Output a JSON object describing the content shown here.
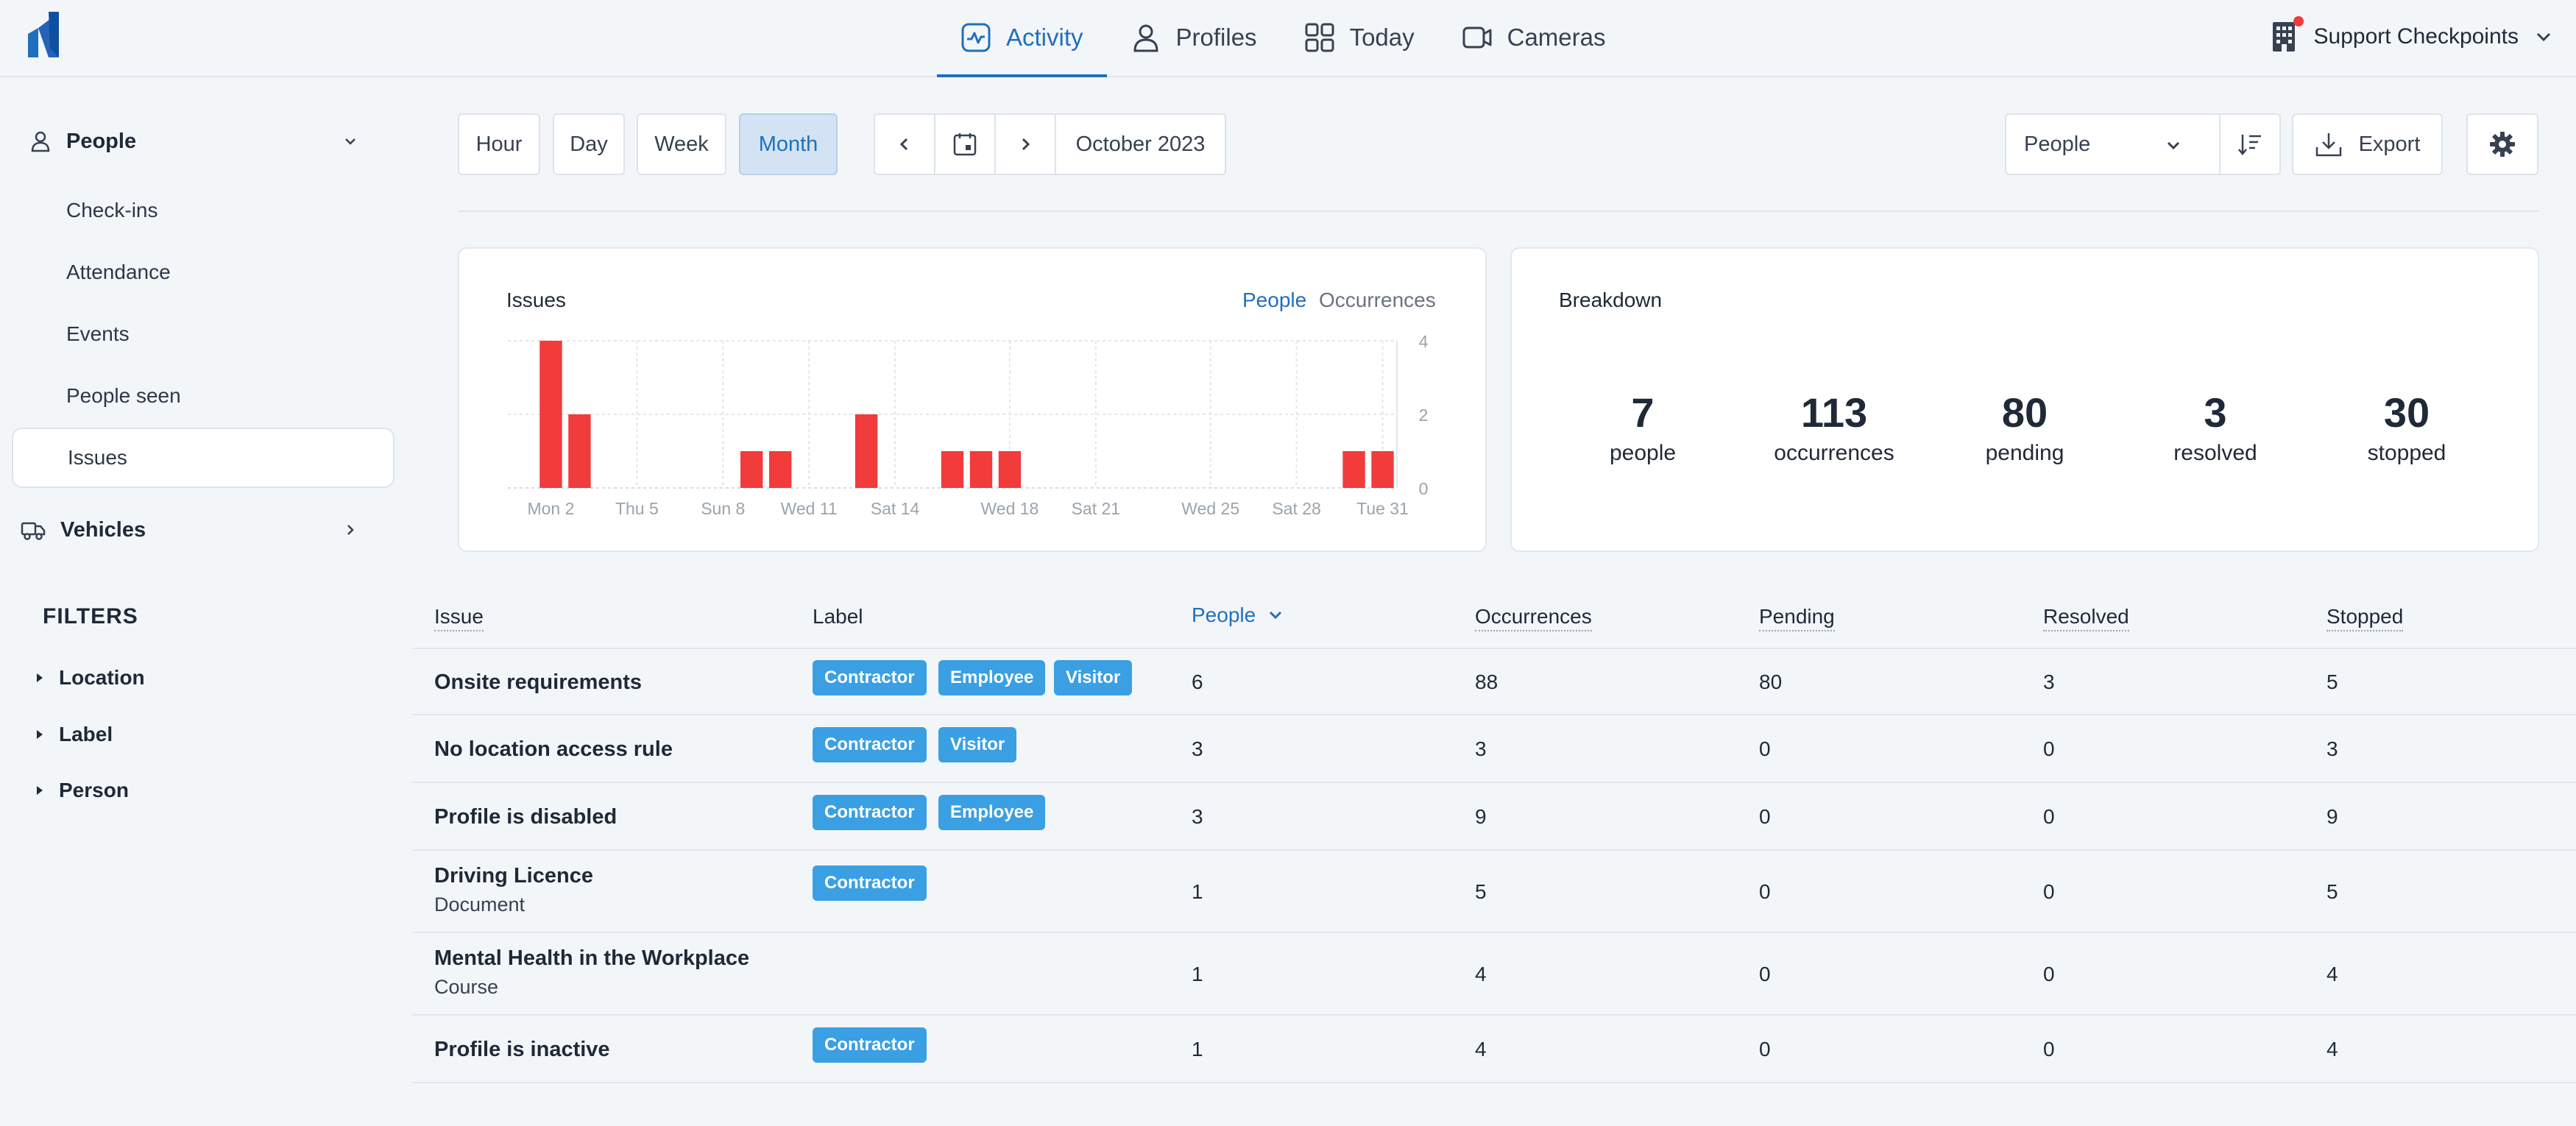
{
  "nav": {
    "tabs": [
      {
        "label": "Activity",
        "icon": "activity-icon",
        "active": true
      },
      {
        "label": "Profiles",
        "icon": "person-icon"
      },
      {
        "label": "Today",
        "icon": "grid-icon"
      },
      {
        "label": "Cameras",
        "icon": "camera-icon"
      }
    ],
    "org": "Support Checkpoints"
  },
  "sidebar": {
    "people_label": "People",
    "items": [
      {
        "label": "Check-ins"
      },
      {
        "label": "Attendance"
      },
      {
        "label": "Events"
      },
      {
        "label": "People seen"
      },
      {
        "label": "Issues",
        "active": true
      }
    ],
    "vehicles_label": "Vehicles",
    "filters_title": "FILTERS",
    "filters": [
      "Location",
      "Label",
      "Person"
    ]
  },
  "toolbar": {
    "ranges": [
      "Hour",
      "Day",
      "Week",
      "Month"
    ],
    "active_range": "Month",
    "period": "October 2023",
    "group_by": "People",
    "export_label": "Export"
  },
  "issues_card": {
    "title": "Issues",
    "toggle_people": "People",
    "toggle_occurrences": "Occurrences"
  },
  "chart_data": {
    "type": "bar",
    "x_tick_labels": [
      "Mon 2",
      "Thu 5",
      "Sun 8",
      "Wed 11",
      "Sat 14",
      "Wed 18",
      "Sat 21",
      "Wed 25",
      "Sat 28",
      "Tue 31"
    ],
    "y_ticks": [
      0,
      2,
      4
    ],
    "ylim": [
      0,
      4
    ],
    "grid": true,
    "bar_color": "#f23b3b",
    "days": [
      1,
      2,
      3,
      4,
      5,
      6,
      7,
      8,
      9,
      10,
      11,
      12,
      13,
      14,
      15,
      16,
      17,
      18,
      19,
      20,
      21,
      22,
      23,
      24,
      25,
      26,
      27,
      28,
      29,
      30,
      31
    ],
    "values": [
      0,
      4,
      2,
      0,
      0,
      0,
      0,
      0,
      1,
      1,
      0,
      0,
      2,
      0,
      0,
      1,
      1,
      1,
      0,
      0,
      0,
      0,
      0,
      0,
      0,
      0,
      0,
      0,
      0,
      1,
      1
    ]
  },
  "breakdown": {
    "title": "Breakdown",
    "stats": [
      {
        "value": "7",
        "label": "people"
      },
      {
        "value": "113",
        "label": "occurrences"
      },
      {
        "value": "80",
        "label": "pending"
      },
      {
        "value": "3",
        "label": "resolved"
      },
      {
        "value": "30",
        "label": "stopped"
      }
    ]
  },
  "table": {
    "headers": [
      "Issue",
      "Label",
      "People",
      "Occurrences",
      "Pending",
      "Resolved",
      "Stopped"
    ],
    "rows": [
      {
        "issue": "Onsite requirements",
        "sub": "",
        "labels": [
          "Contractor",
          "Employee",
          "Visitor"
        ],
        "people": "6",
        "occurrences": "88",
        "pending": "80",
        "resolved": "3",
        "stopped": "5"
      },
      {
        "issue": "No location access rule",
        "sub": "",
        "labels": [
          "Contractor",
          "Visitor"
        ],
        "people": "3",
        "occurrences": "3",
        "pending": "0",
        "resolved": "0",
        "stopped": "3"
      },
      {
        "issue": "Profile is disabled",
        "sub": "",
        "labels": [
          "Contractor",
          "Employee"
        ],
        "people": "3",
        "occurrences": "9",
        "pending": "0",
        "resolved": "0",
        "stopped": "9"
      },
      {
        "issue": "Driving Licence",
        "sub": "Document",
        "labels": [
          "Contractor"
        ],
        "people": "1",
        "occurrences": "5",
        "pending": "0",
        "resolved": "0",
        "stopped": "5"
      },
      {
        "issue": "Mental Health in the Workplace",
        "sub": "Course",
        "labels": [],
        "people": "1",
        "occurrences": "4",
        "pending": "0",
        "resolved": "0",
        "stopped": "4"
      },
      {
        "issue": "Profile is inactive",
        "sub": "",
        "labels": [
          "Contractor"
        ],
        "people": "1",
        "occurrences": "4",
        "pending": "0",
        "resolved": "0",
        "stopped": "4"
      }
    ]
  }
}
